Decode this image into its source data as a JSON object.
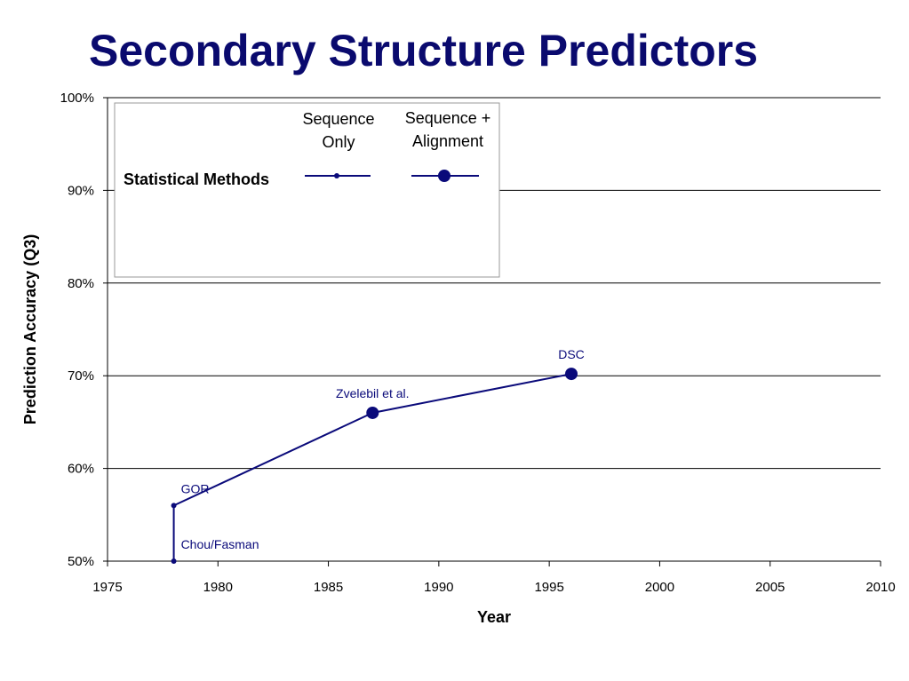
{
  "slide": {
    "title": "Secondary Structure Predictors"
  },
  "colors": {
    "title": "#0a0a6e",
    "series": "#0a0a7a",
    "gridline": "#000000",
    "axis_text": "#000000",
    "legend_border": "#999999"
  },
  "chart_data": {
    "type": "line",
    "title": "",
    "xlabel": "Year",
    "ylabel": "Prediction Accuracy (Q3)",
    "xlim": [
      1975,
      2010
    ],
    "ylim": [
      50,
      100
    ],
    "x_ticks": [
      1975,
      1980,
      1985,
      1990,
      1995,
      2000,
      2005,
      2010
    ],
    "y_ticks": [
      50,
      60,
      70,
      80,
      90,
      100
    ],
    "y_tick_labels": [
      "50%",
      "60%",
      "70%",
      "80%",
      "90%",
      "100%"
    ],
    "grid": "horizontal",
    "legend": {
      "placement": "top-left",
      "column_headers": [
        "Sequence Only",
        "Sequence + Alignment"
      ],
      "row_label": "Statistical Methods",
      "marker_sizes": [
        "small",
        "large"
      ]
    },
    "line": [
      {
        "x": 1978,
        "y": 50
      },
      {
        "x": 1978,
        "y": 56
      },
      {
        "x": 1987,
        "y": 66
      },
      {
        "x": 1996,
        "y": 70.2
      }
    ],
    "points": [
      {
        "label": "Chou/Fasman",
        "x": 1978,
        "y": 50,
        "kind": "sequence-only"
      },
      {
        "label": "GOR",
        "x": 1978,
        "y": 56,
        "kind": "sequence-only"
      },
      {
        "label": "Zvelebil et al.",
        "x": 1987,
        "y": 66,
        "kind": "sequence-alignment"
      },
      {
        "label": "DSC",
        "x": 1996,
        "y": 70.2,
        "kind": "sequence-alignment"
      }
    ]
  }
}
